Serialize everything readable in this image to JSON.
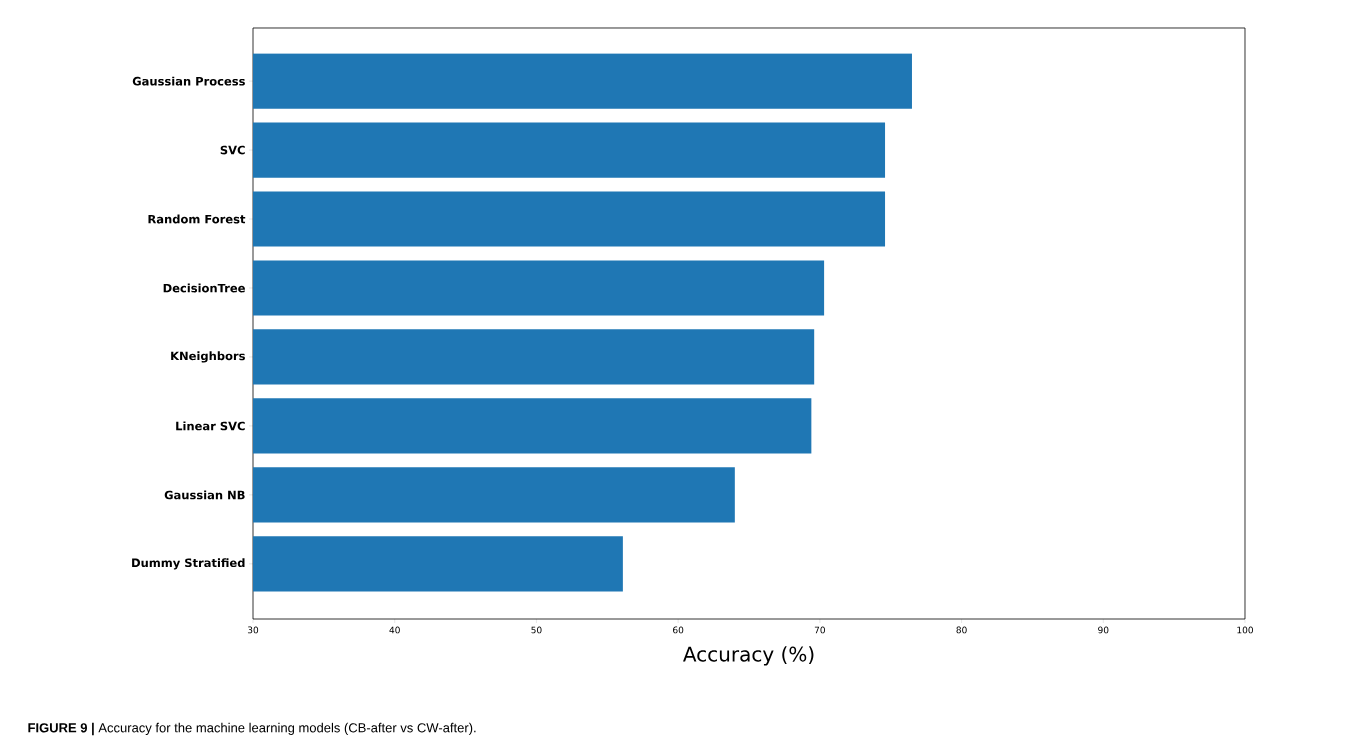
{
  "chart_data": {
    "type": "bar",
    "orientation": "horizontal",
    "categories": [
      "Gaussian Process",
      "SVC",
      "Random Forest",
      "DecisionTree",
      "KNeighbors",
      "Linear SVC",
      "Gaussian NB",
      "Dummy Stratified"
    ],
    "values": [
      76.5,
      74.6,
      74.6,
      70.3,
      69.6,
      69.4,
      64.0,
      56.1
    ],
    "color": "#1f77b4",
    "xlim": [
      30,
      100
    ],
    "xticks": [
      30,
      40,
      50,
      60,
      70,
      80,
      90,
      100
    ],
    "xlabel": "Accuracy (%)",
    "annotations": [
      "**FIGURE 9 |** Accuracy for the machine learning models (CB-after vs CW-after)."
    ],
    "grid": false
  }
}
